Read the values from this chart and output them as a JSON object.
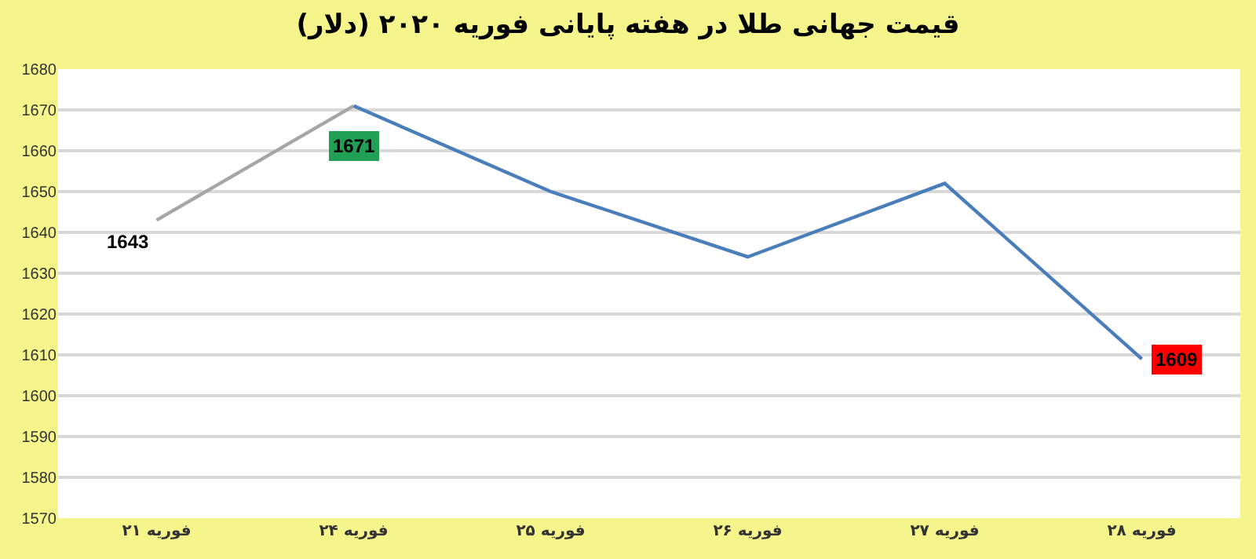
{
  "chart_data": {
    "type": "line",
    "title": "قیمت جهانی طلا در هفته پایانی فوریه ۲۰۲۰ (دلار)",
    "categories": [
      "۲۱ فوریه",
      "۲۴ فوریه",
      "۲۵ فوریه",
      "۲۶ فوریه",
      "۲۷ فوریه",
      "۲۸ فوریه"
    ],
    "series": [
      {
        "color": "#a6a6a6",
        "values": [
          1643,
          1671,
          null,
          null,
          null,
          null
        ],
        "value_labels": [
          "1643",
          null,
          null,
          null,
          null,
          null
        ]
      },
      {
        "color": "#4a7ebb",
        "values": [
          null,
          1671,
          1650,
          1634,
          1652,
          1609
        ],
        "value_labels": [
          null,
          "1671",
          null,
          null,
          null,
          "1609"
        ]
      }
    ],
    "ylim": [
      1570,
      1680
    ],
    "yticks": [
      1570,
      1580,
      1590,
      1600,
      1610,
      1620,
      1630,
      1640,
      1650,
      1660,
      1670,
      1680
    ],
    "grid": "y",
    "marker": "none",
    "line_style": "solid"
  }
}
